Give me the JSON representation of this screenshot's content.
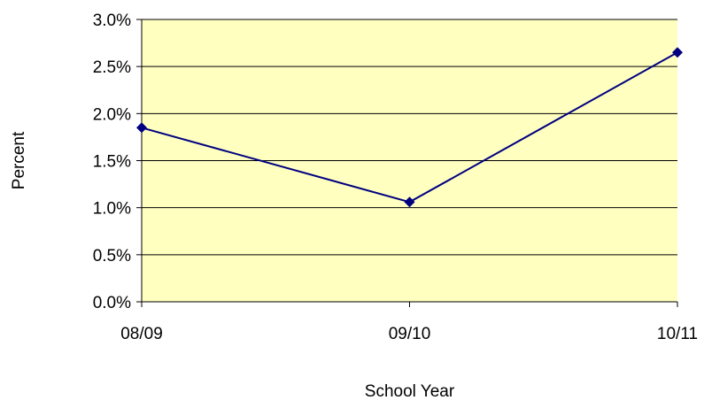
{
  "chart_data": {
    "type": "line",
    "title": "",
    "xlabel": "School Year",
    "ylabel": "Percent",
    "categories": [
      "08/09",
      "09/10",
      "10/11"
    ],
    "series": [
      {
        "values": [
          1.85,
          1.06,
          2.65
        ],
        "color": "#000080",
        "marker": "diamond"
      }
    ],
    "ylim": [
      0,
      3
    ],
    "yticks": [
      0,
      0.5,
      1,
      1.5,
      2,
      2.5,
      3
    ],
    "ytick_labels": [
      "0.0%",
      "0.5%",
      "1.0%",
      "1.5%",
      "2.0%",
      "2.5%",
      "3.0%"
    ],
    "grid": true,
    "legend": "none",
    "colors": {
      "plot_background": "#FFFFC0",
      "gridline": "#000000",
      "line": "#000080"
    }
  }
}
